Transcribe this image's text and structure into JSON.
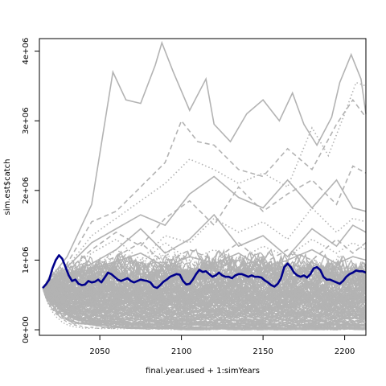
{
  "chart_data": {
    "type": "line",
    "title": "",
    "xlabel": "final.year.used + 1:simYears",
    "ylabel": "sim.est$catch",
    "xlim": [
      2013,
      2213
    ],
    "ylim": [
      -80000,
      4180000
    ],
    "x_ticks": [
      2050,
      2100,
      2150,
      2200
    ],
    "x_tick_labels": [
      "2050",
      "2100",
      "2150",
      "2200"
    ],
    "y_ticks": [
      0,
      1000000,
      2000000,
      3000000,
      4000000
    ],
    "y_tick_labels": [
      "0e+00",
      "1e+06",
      "2e+06",
      "3e+06",
      "4e+06"
    ],
    "grid": false,
    "colors": {
      "simulations": "#b3b3b3",
      "median": "#00008b",
      "axes": "#000000"
    },
    "x_start": 2015,
    "x_end": 2213,
    "sims_band": {
      "count": 160,
      "start_value": 600000,
      "low": 0,
      "high": 880000
    },
    "highlighted_sims": [
      {
        "style": "solid",
        "points": [
          [
            2015,
            600000
          ],
          [
            2030,
            1050000
          ],
          [
            2045,
            1800000
          ],
          [
            2058,
            3700000
          ],
          [
            2066,
            3300000
          ],
          [
            2075,
            3250000
          ],
          [
            2084,
            3800000
          ],
          [
            2088,
            4120000
          ],
          [
            2095,
            3700000
          ],
          [
            2105,
            3150000
          ],
          [
            2115,
            3600000
          ],
          [
            2120,
            2950000
          ],
          [
            2130,
            2700000
          ],
          [
            2140,
            3100000
          ],
          [
            2150,
            3300000
          ],
          [
            2160,
            3000000
          ],
          [
            2168,
            3400000
          ],
          [
            2175,
            2950000
          ],
          [
            2183,
            2650000
          ],
          [
            2192,
            3050000
          ],
          [
            2197,
            3550000
          ],
          [
            2204,
            3950000
          ],
          [
            2210,
            3600000
          ],
          [
            2213,
            3100000
          ]
        ]
      },
      {
        "style": "dashed",
        "points": [
          [
            2015,
            600000
          ],
          [
            2030,
            950000
          ],
          [
            2045,
            1550000
          ],
          [
            2060,
            1700000
          ],
          [
            2075,
            2050000
          ],
          [
            2090,
            2400000
          ],
          [
            2100,
            3000000
          ],
          [
            2110,
            2700000
          ],
          [
            2120,
            2650000
          ],
          [
            2135,
            2300000
          ],
          [
            2150,
            2200000
          ],
          [
            2165,
            2600000
          ],
          [
            2180,
            2300000
          ],
          [
            2195,
            2950000
          ],
          [
            2205,
            3300000
          ],
          [
            2213,
            3050000
          ]
        ]
      },
      {
        "style": "dotted",
        "points": [
          [
            2015,
            600000
          ],
          [
            2030,
            900000
          ],
          [
            2045,
            1350000
          ],
          [
            2060,
            1600000
          ],
          [
            2075,
            1850000
          ],
          [
            2090,
            2100000
          ],
          [
            2105,
            2450000
          ],
          [
            2120,
            2300000
          ],
          [
            2135,
            2100000
          ],
          [
            2150,
            2250000
          ],
          [
            2165,
            2050000
          ],
          [
            2180,
            2900000
          ],
          [
            2190,
            2500000
          ],
          [
            2200,
            3100000
          ],
          [
            2207,
            3550000
          ],
          [
            2213,
            3500000
          ]
        ]
      },
      {
        "style": "solid",
        "points": [
          [
            2015,
            600000
          ],
          [
            2030,
            900000
          ],
          [
            2045,
            1250000
          ],
          [
            2060,
            1450000
          ],
          [
            2075,
            1650000
          ],
          [
            2090,
            1500000
          ],
          [
            2105,
            1950000
          ],
          [
            2120,
            2200000
          ],
          [
            2135,
            1900000
          ],
          [
            2150,
            1750000
          ],
          [
            2165,
            2150000
          ],
          [
            2180,
            1750000
          ],
          [
            2195,
            2150000
          ],
          [
            2205,
            1750000
          ],
          [
            2213,
            1700000
          ]
        ]
      },
      {
        "style": "dashed",
        "points": [
          [
            2015,
            600000
          ],
          [
            2030,
            850000
          ],
          [
            2045,
            1150000
          ],
          [
            2060,
            1400000
          ],
          [
            2075,
            1200000
          ],
          [
            2090,
            1600000
          ],
          [
            2105,
            1850000
          ],
          [
            2120,
            1500000
          ],
          [
            2135,
            2050000
          ],
          [
            2150,
            1700000
          ],
          [
            2165,
            1950000
          ],
          [
            2180,
            2150000
          ],
          [
            2195,
            1800000
          ],
          [
            2205,
            2350000
          ],
          [
            2213,
            2250000
          ]
        ]
      },
      {
        "style": "dotted",
        "points": [
          [
            2015,
            600000
          ],
          [
            2030,
            850000
          ],
          [
            2045,
            1100000
          ],
          [
            2060,
            1300000
          ],
          [
            2075,
            1000000
          ],
          [
            2090,
            1350000
          ],
          [
            2105,
            1250000
          ],
          [
            2120,
            1600000
          ],
          [
            2135,
            1400000
          ],
          [
            2150,
            1550000
          ],
          [
            2165,
            1300000
          ],
          [
            2180,
            1750000
          ],
          [
            2195,
            1400000
          ],
          [
            2205,
            1600000
          ],
          [
            2213,
            1550000
          ]
        ]
      },
      {
        "style": "solid",
        "points": [
          [
            2015,
            600000
          ],
          [
            2030,
            800000
          ],
          [
            2045,
            950000
          ],
          [
            2060,
            1150000
          ],
          [
            2075,
            1450000
          ],
          [
            2090,
            1100000
          ],
          [
            2105,
            1300000
          ],
          [
            2120,
            1650000
          ],
          [
            2135,
            1200000
          ],
          [
            2150,
            1350000
          ],
          [
            2165,
            1050000
          ],
          [
            2180,
            1450000
          ],
          [
            2195,
            1200000
          ],
          [
            2205,
            1500000
          ],
          [
            2213,
            1400000
          ]
        ]
      },
      {
        "style": "dashed",
        "points": [
          [
            2015,
            600000
          ],
          [
            2030,
            780000
          ],
          [
            2045,
            900000
          ],
          [
            2060,
            1050000
          ],
          [
            2075,
            1250000
          ],
          [
            2090,
            950000
          ],
          [
            2105,
            1150000
          ],
          [
            2120,
            1000000
          ],
          [
            2135,
            1250000
          ],
          [
            2150,
            950000
          ],
          [
            2165,
            1150000
          ],
          [
            2180,
            1000000
          ],
          [
            2195,
            1300000
          ],
          [
            2205,
            1100000
          ],
          [
            2213,
            1250000
          ]
        ]
      },
      {
        "style": "solid",
        "points": [
          [
            2015,
            600000
          ],
          [
            2030,
            760000
          ],
          [
            2045,
            880000
          ],
          [
            2060,
            980000
          ],
          [
            2075,
            1100000
          ],
          [
            2090,
            900000
          ],
          [
            2105,
            1050000
          ],
          [
            2120,
            950000
          ],
          [
            2135,
            1100000
          ],
          [
            2150,
            880000
          ],
          [
            2165,
            1000000
          ],
          [
            2180,
            1150000
          ],
          [
            2195,
            950000
          ],
          [
            2205,
            1050000
          ],
          [
            2213,
            1000000
          ]
        ]
      },
      {
        "style": "dotted",
        "points": [
          [
            2015,
            600000
          ],
          [
            2030,
            740000
          ],
          [
            2045,
            850000
          ],
          [
            2060,
            1150000
          ],
          [
            2075,
            950000
          ],
          [
            2090,
            1250000
          ],
          [
            2105,
            1000000
          ],
          [
            2120,
            1150000
          ],
          [
            2135,
            1000000
          ],
          [
            2150,
            1200000
          ],
          [
            2165,
            1050000
          ],
          [
            2180,
            1300000
          ],
          [
            2195,
            1100000
          ],
          [
            2205,
            1250000
          ],
          [
            2213,
            1150000
          ]
        ]
      }
    ],
    "series": [
      {
        "name": "",
        "color": "#00008b",
        "x": [
          2015,
          2017,
          2019,
          2021,
          2023,
          2025,
          2027,
          2029,
          2031,
          2033,
          2035,
          2037,
          2039,
          2041,
          2043,
          2045,
          2047,
          2049,
          2051,
          2053,
          2055,
          2057,
          2059,
          2061,
          2063,
          2065,
          2067,
          2069,
          2071,
          2073,
          2075,
          2077,
          2079,
          2081,
          2083,
          2085,
          2087,
          2089,
          2091,
          2093,
          2095,
          2097,
          2099,
          2101,
          2103,
          2105,
          2107,
          2109,
          2111,
          2113,
          2115,
          2117,
          2119,
          2121,
          2123,
          2125,
          2127,
          2129,
          2131,
          2133,
          2135,
          2137,
          2139,
          2141,
          2143,
          2145,
          2147,
          2149,
          2151,
          2153,
          2155,
          2157,
          2159,
          2161,
          2163,
          2165,
          2167,
          2169,
          2171,
          2173,
          2175,
          2177,
          2179,
          2181,
          2183,
          2185,
          2187,
          2189,
          2191,
          2193,
          2195,
          2197,
          2199,
          2201,
          2203,
          2205,
          2207,
          2209,
          2211,
          2213
        ],
        "values": [
          600000,
          650000,
          720000,
          880000,
          1000000,
          1070000,
          1020000,
          900000,
          780000,
          700000,
          720000,
          660000,
          640000,
          650000,
          700000,
          680000,
          690000,
          720000,
          680000,
          750000,
          820000,
          800000,
          760000,
          720000,
          700000,
          720000,
          740000,
          700000,
          680000,
          700000,
          720000,
          710000,
          700000,
          680000,
          620000,
          600000,
          640000,
          690000,
          720000,
          760000,
          780000,
          800000,
          790000,
          700000,
          650000,
          660000,
          720000,
          800000,
          860000,
          830000,
          840000,
          800000,
          760000,
          780000,
          820000,
          780000,
          760000,
          760000,
          740000,
          780000,
          800000,
          800000,
          780000,
          760000,
          780000,
          760000,
          760000,
          750000,
          710000,
          680000,
          640000,
          620000,
          660000,
          740000,
          900000,
          950000,
          900000,
          820000,
          780000,
          760000,
          780000,
          750000,
          800000,
          880000,
          900000,
          860000,
          760000,
          720000,
          720000,
          700000,
          680000,
          660000,
          700000,
          760000,
          800000,
          820000,
          850000,
          840000,
          840000,
          820000
        ]
      }
    ]
  }
}
